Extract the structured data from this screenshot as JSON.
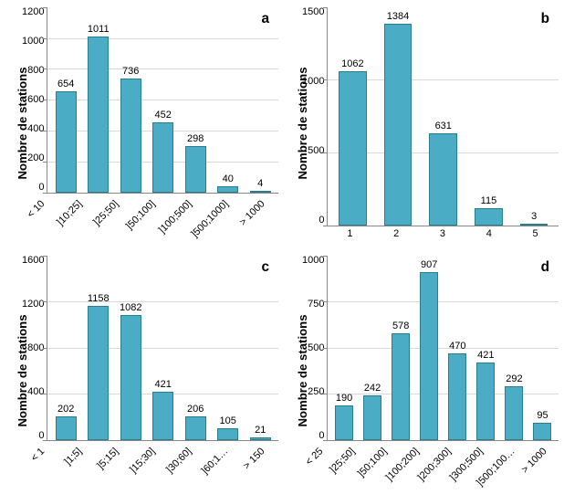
{
  "global": {
    "bar_fill": "#4bacc6",
    "bar_border": "#2a7d8c",
    "grid_color": "#d9d9d9",
    "axis_color": "#888888",
    "bg": "#ffffff",
    "text_color": "#000000",
    "label_fontsize_pt": 12,
    "tick_fontsize_pt": 10,
    "value_fontsize_pt": 10,
    "letter_fontsize_pt": 14,
    "font_family": "Arial"
  },
  "ylabel": "Nombre de stations",
  "panels": {
    "a": {
      "letter": "a",
      "type": "bar",
      "ymax": 1200,
      "ytick_step": 200,
      "yticks": [
        "1200",
        "1000",
        "800",
        "600",
        "400",
        "200",
        "0"
      ],
      "categories": [
        "< 10",
        "]10;25]",
        "]25;50]",
        "]50;100]",
        "]100;500]",
        "]500;1000]",
        "> 1000"
      ],
      "values": [
        654,
        1011,
        736,
        452,
        298,
        40,
        4
      ],
      "rotated_x": true,
      "bar_width": 0.78
    },
    "b": {
      "letter": "b",
      "type": "bar",
      "ymax": 1500,
      "ytick_step": 500,
      "yticks": [
        "1500",
        "1000",
        "500",
        "0"
      ],
      "categories": [
        "1",
        "2",
        "3",
        "4",
        "5"
      ],
      "values": [
        1062,
        1384,
        631,
        115,
        3
      ],
      "rotated_x": false,
      "bar_width": 0.7
    },
    "c": {
      "letter": "c",
      "type": "bar",
      "ymax": 1600,
      "ytick_step": 400,
      "yticks": [
        "1600",
        "1200",
        "800",
        "400",
        "0"
      ],
      "categories": [
        "< 1",
        "]1;5]",
        "]5;15]",
        "]15;30]",
        "]30;60]",
        "]60;1…",
        "> 150"
      ],
      "values": [
        202,
        1158,
        1082,
        421,
        206,
        105,
        21
      ],
      "rotated_x": true,
      "bar_width": 0.78
    },
    "d": {
      "letter": "d",
      "type": "bar",
      "ymax": 1000,
      "ytick_step": 250,
      "yticks": [
        "1000",
        "750",
        "500",
        "250",
        "0"
      ],
      "categories": [
        "< 25",
        "]25;50]",
        "]50;100]",
        "]100;200]",
        "]200;300]",
        "]300;500]",
        "]500;100…",
        "> 1000"
      ],
      "values": [
        190,
        242,
        578,
        907,
        470,
        421,
        292,
        95
      ],
      "rotated_x": true,
      "bar_width": 0.8
    }
  }
}
